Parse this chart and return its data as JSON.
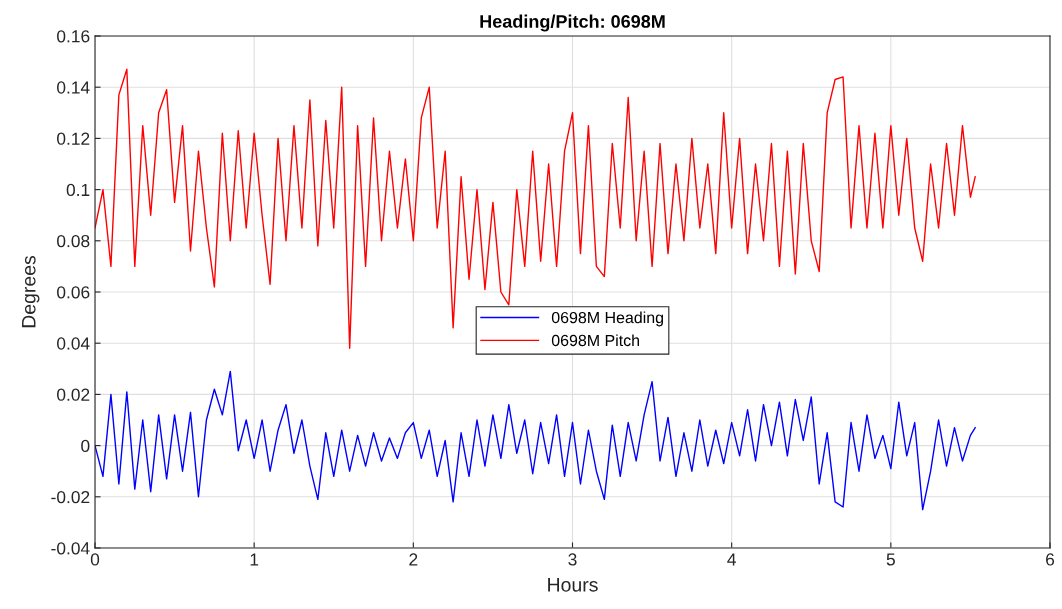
{
  "chart_data": {
    "type": "line",
    "title": "Heading/Pitch: 0698M",
    "xlabel": "Hours",
    "ylabel": "Degrees",
    "xlim": [
      0,
      6
    ],
    "xticks": [
      0,
      1,
      2,
      3,
      4,
      5,
      6
    ],
    "ylim": [
      -0.04,
      0.16
    ],
    "yticks": [
      -0.04,
      -0.02,
      0,
      0.02,
      0.04,
      0.06,
      0.08,
      0.1,
      0.12,
      0.14,
      0.16
    ],
    "grid": true,
    "legend": "center",
    "line_style": "solid",
    "marker": "none",
    "x": [
      0,
      0.05,
      0.1,
      0.15,
      0.2,
      0.25,
      0.3,
      0.35,
      0.4,
      0.45,
      0.5,
      0.55,
      0.6,
      0.65,
      0.7,
      0.75,
      0.8,
      0.85,
      0.9,
      0.95,
      1,
      1.05,
      1.1,
      1.15,
      1.2,
      1.25,
      1.3,
      1.35,
      1.4,
      1.45,
      1.5,
      1.55,
      1.6,
      1.65,
      1.7,
      1.75,
      1.8,
      1.85,
      1.9,
      1.95,
      2,
      2.05,
      2.1,
      2.15,
      2.2,
      2.25,
      2.3,
      2.35,
      2.4,
      2.45,
      2.5,
      2.55,
      2.6,
      2.65,
      2.7,
      2.75,
      2.8,
      2.85,
      2.9,
      2.95,
      3,
      3.05,
      3.1,
      3.15,
      3.2,
      3.25,
      3.3,
      3.35,
      3.4,
      3.45,
      3.5,
      3.55,
      3.6,
      3.65,
      3.7,
      3.75,
      3.8,
      3.85,
      3.9,
      3.95,
      4,
      4.05,
      4.1,
      4.15,
      4.2,
      4.25,
      4.3,
      4.35,
      4.4,
      4.45,
      4.5,
      4.55,
      4.6,
      4.65,
      4.7,
      4.75,
      4.8,
      4.85,
      4.9,
      4.95,
      5,
      5.05,
      5.1,
      5.15,
      5.2,
      5.25,
      5.3,
      5.35,
      5.4,
      5.45,
      5.5,
      5.53
    ],
    "series": [
      {
        "name": "0698M Heading",
        "color": "#0000ff",
        "values": [
          0,
          -0.012,
          0.02,
          -0.015,
          0.021,
          -0.017,
          0.01,
          -0.018,
          0.012,
          -0.013,
          0.012,
          -0.01,
          0.013,
          -0.02,
          0.01,
          0.022,
          0.012,
          0.029,
          -0.002,
          0.01,
          -0.005,
          0.01,
          -0.01,
          0.006,
          0.016,
          -0.003,
          0.01,
          -0.008,
          -0.021,
          0.005,
          -0.012,
          0.006,
          -0.01,
          0.004,
          -0.008,
          0.005,
          -0.006,
          0.003,
          -0.005,
          0.005,
          0.009,
          -0.005,
          0.006,
          -0.012,
          0.002,
          -0.022,
          0.005,
          -0.012,
          0.01,
          -0.008,
          0.012,
          -0.005,
          0.016,
          -0.003,
          0.01,
          -0.011,
          0.009,
          -0.007,
          0.012,
          -0.012,
          0.009,
          -0.015,
          0.006,
          -0.01,
          -0.021,
          0.008,
          -0.012,
          0.009,
          -0.006,
          0.012,
          0.025,
          -0.006,
          0.011,
          -0.012,
          0.005,
          -0.01,
          0.01,
          -0.008,
          0.006,
          -0.007,
          0.009,
          -0.004,
          0.014,
          -0.006,
          0.016,
          0,
          0.017,
          -0.004,
          0.018,
          0.002,
          0.019,
          -0.015,
          0.005,
          -0.022,
          -0.024,
          0.009,
          -0.01,
          0.012,
          -0.005,
          0.004,
          -0.009,
          0.017,
          -0.004,
          0.009,
          -0.025,
          -0.01,
          0.01,
          -0.008,
          0.007,
          -0.006,
          0.004,
          0.007
        ]
      },
      {
        "name": "0698M Pitch",
        "color": "#ff0000",
        "values": [
          0.085,
          0.1,
          0.07,
          0.137,
          0.147,
          0.07,
          0.125,
          0.09,
          0.13,
          0.139,
          0.095,
          0.125,
          0.076,
          0.115,
          0.085,
          0.062,
          0.122,
          0.08,
          0.123,
          0.085,
          0.122,
          0.09,
          0.063,
          0.12,
          0.08,
          0.125,
          0.085,
          0.135,
          0.078,
          0.127,
          0.085,
          0.14,
          0.038,
          0.125,
          0.07,
          0.128,
          0.08,
          0.115,
          0.085,
          0.112,
          0.08,
          0.128,
          0.14,
          0.085,
          0.115,
          0.046,
          0.105,
          0.065,
          0.1,
          0.061,
          0.095,
          0.06,
          0.055,
          0.1,
          0.07,
          0.115,
          0.072,
          0.11,
          0.07,
          0.115,
          0.13,
          0.075,
          0.125,
          0.07,
          0.066,
          0.118,
          0.085,
          0.136,
          0.08,
          0.115,
          0.07,
          0.118,
          0.075,
          0.11,
          0.08,
          0.12,
          0.085,
          0.11,
          0.075,
          0.13,
          0.085,
          0.12,
          0.075,
          0.11,
          0.08,
          0.118,
          0.07,
          0.115,
          0.067,
          0.118,
          0.08,
          0.068,
          0.13,
          0.143,
          0.144,
          0.085,
          0.125,
          0.085,
          0.122,
          0.085,
          0.125,
          0.09,
          0.12,
          0.085,
          0.072,
          0.11,
          0.085,
          0.118,
          0.09,
          0.125,
          0.097,
          0.105
        ]
      }
    ]
  }
}
